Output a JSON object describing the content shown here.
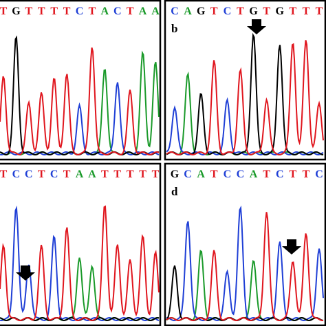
{
  "panels": [
    {
      "bases": [
        "T",
        "G",
        "T",
        "T",
        "T",
        "T",
        "C",
        "T",
        "A",
        "C",
        "T",
        "A",
        "A"
      ]
    },
    {
      "label": "b",
      "bases": [
        "C",
        "A",
        "G",
        "T",
        "C",
        "T",
        "G",
        "T",
        "G",
        "T",
        "T",
        "T"
      ]
    },
    {
      "bases": [
        "T",
        "C",
        "C",
        "T",
        "C",
        "T",
        "A",
        "A",
        "T",
        "T",
        "T",
        "T",
        "T"
      ]
    },
    {
      "label": "d",
      "bases": [
        "G",
        "C",
        "A",
        "T",
        "C",
        "C",
        "A",
        "T",
        "C",
        "T",
        "T",
        "C"
      ]
    }
  ]
}
